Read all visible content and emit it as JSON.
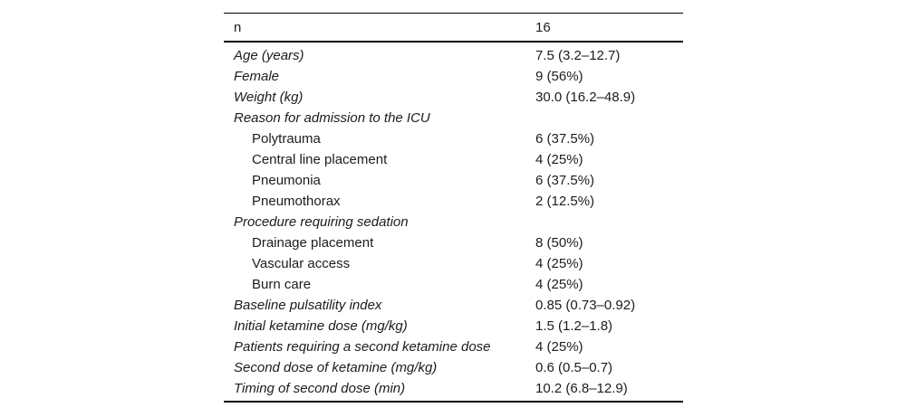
{
  "table": {
    "description": "patient-characteristics-table",
    "header": {
      "label": "n",
      "value": "16"
    },
    "rows": [
      {
        "label": "Age (years)",
        "value": "7.5 (3.2–12.7)",
        "style": "main"
      },
      {
        "label": "Female",
        "value": "9 (56%)",
        "style": "main"
      },
      {
        "label": "Weight (kg)",
        "value": "30.0 (16.2–48.9)",
        "style": "main"
      },
      {
        "label": "Reason for admission to the ICU",
        "value": "",
        "style": "main"
      },
      {
        "label": "Polytrauma",
        "value": "6 (37.5%)",
        "style": "sub"
      },
      {
        "label": "Central line placement",
        "value": "4 (25%)",
        "style": "sub"
      },
      {
        "label": "Pneumonia",
        "value": "6 (37.5%)",
        "style": "sub"
      },
      {
        "label": "Pneumothorax",
        "value": "2 (12.5%)",
        "style": "sub"
      },
      {
        "label": "Procedure requiring sedation",
        "value": "",
        "style": "main"
      },
      {
        "label": "Drainage placement",
        "value": "8 (50%)",
        "style": "sub"
      },
      {
        "label": "Vascular access",
        "value": "4 (25%)",
        "style": "sub"
      },
      {
        "label": "Burn care",
        "value": "4 (25%)",
        "style": "sub"
      },
      {
        "label": "Baseline pulsatility index",
        "value": "0.85 (0.73–0.92)",
        "style": "main"
      },
      {
        "label": "Initial ketamine dose (mg/kg)",
        "value": "1.5 (1.2–1.8)",
        "style": "main"
      },
      {
        "label": "Patients requiring a second ketamine dose",
        "value": "4 (25%)",
        "style": "main"
      },
      {
        "label": "Second dose of ketamine (mg/kg)",
        "value": "0.6 (0.5–0.7)",
        "style": "main"
      },
      {
        "label": "Timing of second dose (min)",
        "value": "10.2 (6.8–12.9)",
        "style": "main"
      }
    ],
    "colors": {
      "text": "#1c1c1c",
      "rule": "#000000",
      "background": "#ffffff"
    }
  }
}
